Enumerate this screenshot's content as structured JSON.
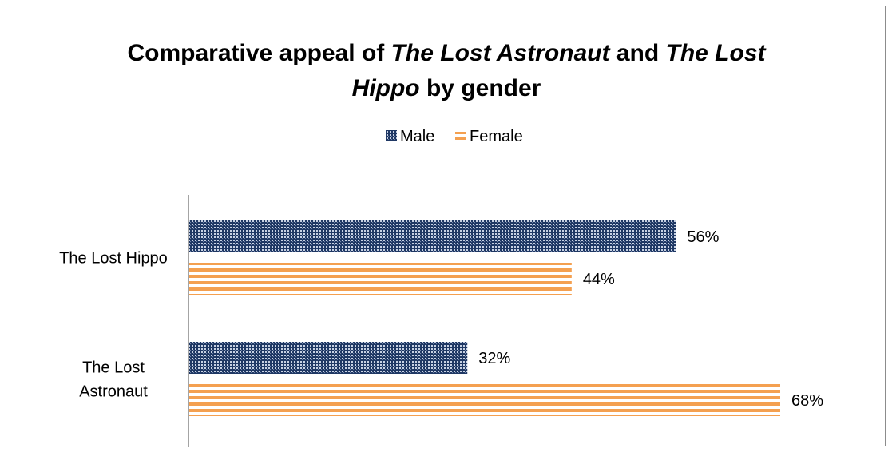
{
  "chart_data": {
    "type": "bar",
    "orientation": "horizontal",
    "title_runs": [
      {
        "text": "Comparative appeal of ",
        "italic": false
      },
      {
        "text": "The Lost Astronaut",
        "italic": true
      },
      {
        "text": " and ",
        "italic": false
      },
      {
        "text": "The Lost",
        "italic": true
      },
      {
        "text": "|",
        "italic": false
      },
      {
        "text": "Hippo",
        "italic": true
      },
      {
        "text": " by gender",
        "italic": false
      }
    ],
    "title": "Comparative appeal of The Lost Astronaut and The Lost Hippo by gender",
    "categories": [
      "The Lost Hippo",
      "The Lost Astronaut"
    ],
    "category_lines": [
      [
        "The Lost Hippo"
      ],
      [
        "The Lost",
        "Astronaut"
      ]
    ],
    "series": [
      {
        "name": "Male",
        "values": [
          56,
          32
        ],
        "labels": [
          "56%",
          "32%"
        ],
        "color": "#1f3864",
        "pattern": "dotted-grid"
      },
      {
        "name": "Female",
        "values": [
          44,
          68
        ],
        "labels": [
          "44%",
          "68%"
        ],
        "color": "#f4a050",
        "pattern": "horizontal-stripes"
      }
    ],
    "xlim": [
      0,
      70
    ],
    "legend_position": "top",
    "grid": false
  }
}
